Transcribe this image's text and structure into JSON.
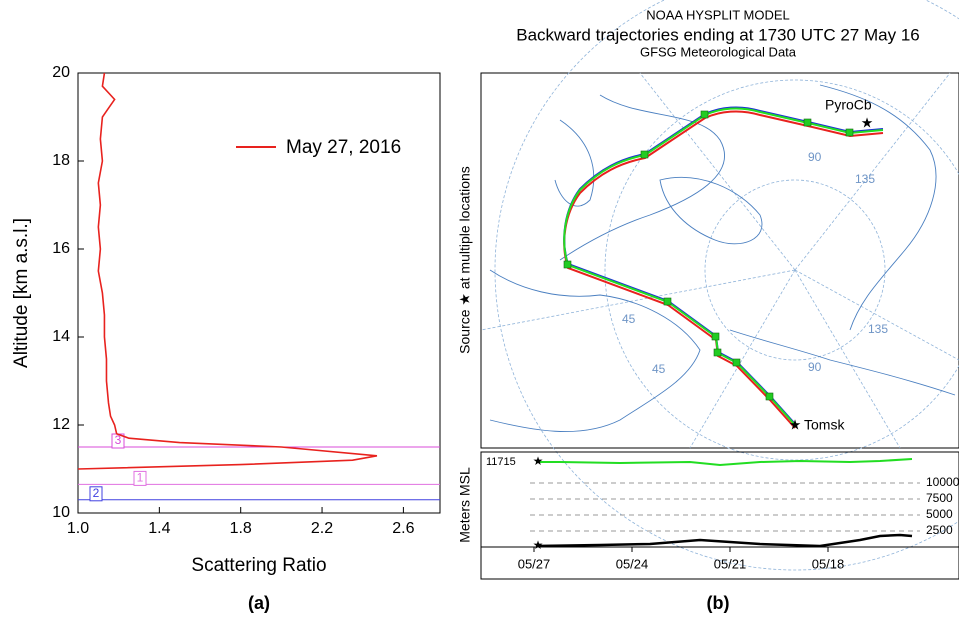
{
  "chart_data": [
    {
      "type": "line",
      "xlabel": "Scattering Ratio",
      "ylabel": "Altitude [km a.s.l.]",
      "caption": "(a)",
      "xlim": [
        1.0,
        2.78
      ],
      "xticks": [
        {
          "value": 1.0,
          "label": "1.0"
        },
        1.4,
        1.8,
        2.2,
        2.6
      ],
      "ylim": [
        10,
        20
      ],
      "yticks": [
        10,
        12,
        14,
        16,
        18,
        20
      ],
      "legend": "upper right",
      "series": [
        {
          "name": "May 27, 2016",
          "color": "#e8221e",
          "x": [
            1.13,
            1.12,
            1.16,
            1.18,
            1.15,
            1.12,
            1.11,
            1.12,
            1.1,
            1.11,
            1.1,
            1.11,
            1.1,
            1.12,
            1.13,
            1.13,
            1.14,
            1.14,
            1.15,
            1.16,
            1.18,
            1.19,
            1.25,
            1.5,
            2.0,
            2.47,
            2.35,
            1.8,
            1.0
          ],
          "values": [
            20.0,
            19.7,
            19.5,
            19.4,
            19.2,
            19.0,
            18.5,
            18.0,
            17.5,
            17.0,
            16.5,
            16.0,
            15.5,
            15.0,
            14.5,
            14.0,
            13.5,
            13.0,
            12.5,
            12.2,
            12.0,
            11.8,
            11.7,
            11.6,
            11.5,
            11.3,
            11.2,
            11.1,
            11.0
          ]
        }
      ],
      "layers": [
        {
          "label": "3",
          "value": 11.5,
          "color": "#d84bd8"
        },
        {
          "label": "1",
          "value": 10.65,
          "color": "#e070e0"
        },
        {
          "label": "2",
          "value": 10.3,
          "color": "#4040e0"
        }
      ]
    },
    {
      "type": "map",
      "title": [
        "NOAA HYSPLIT MODEL",
        "Backward trajectories ending at 1730 UTC 27 May 16",
        "GFSG Meteorological Data"
      ],
      "caption": "(b)",
      "source_label": "Source ★  at multiple locations",
      "ylabel": "Meters MSL",
      "start_height": 11715,
      "ylim": [
        0,
        12500
      ],
      "yticks": [
        2500,
        5000,
        7500,
        10000
      ],
      "categories": [
        "05/27",
        "05/24",
        "05/21",
        "05/18"
      ],
      "places": [
        "PyroCb",
        "Tomsk"
      ],
      "grid_labels": [
        "135",
        "90",
        "45",
        "135",
        "90",
        "45"
      ]
    }
  ]
}
